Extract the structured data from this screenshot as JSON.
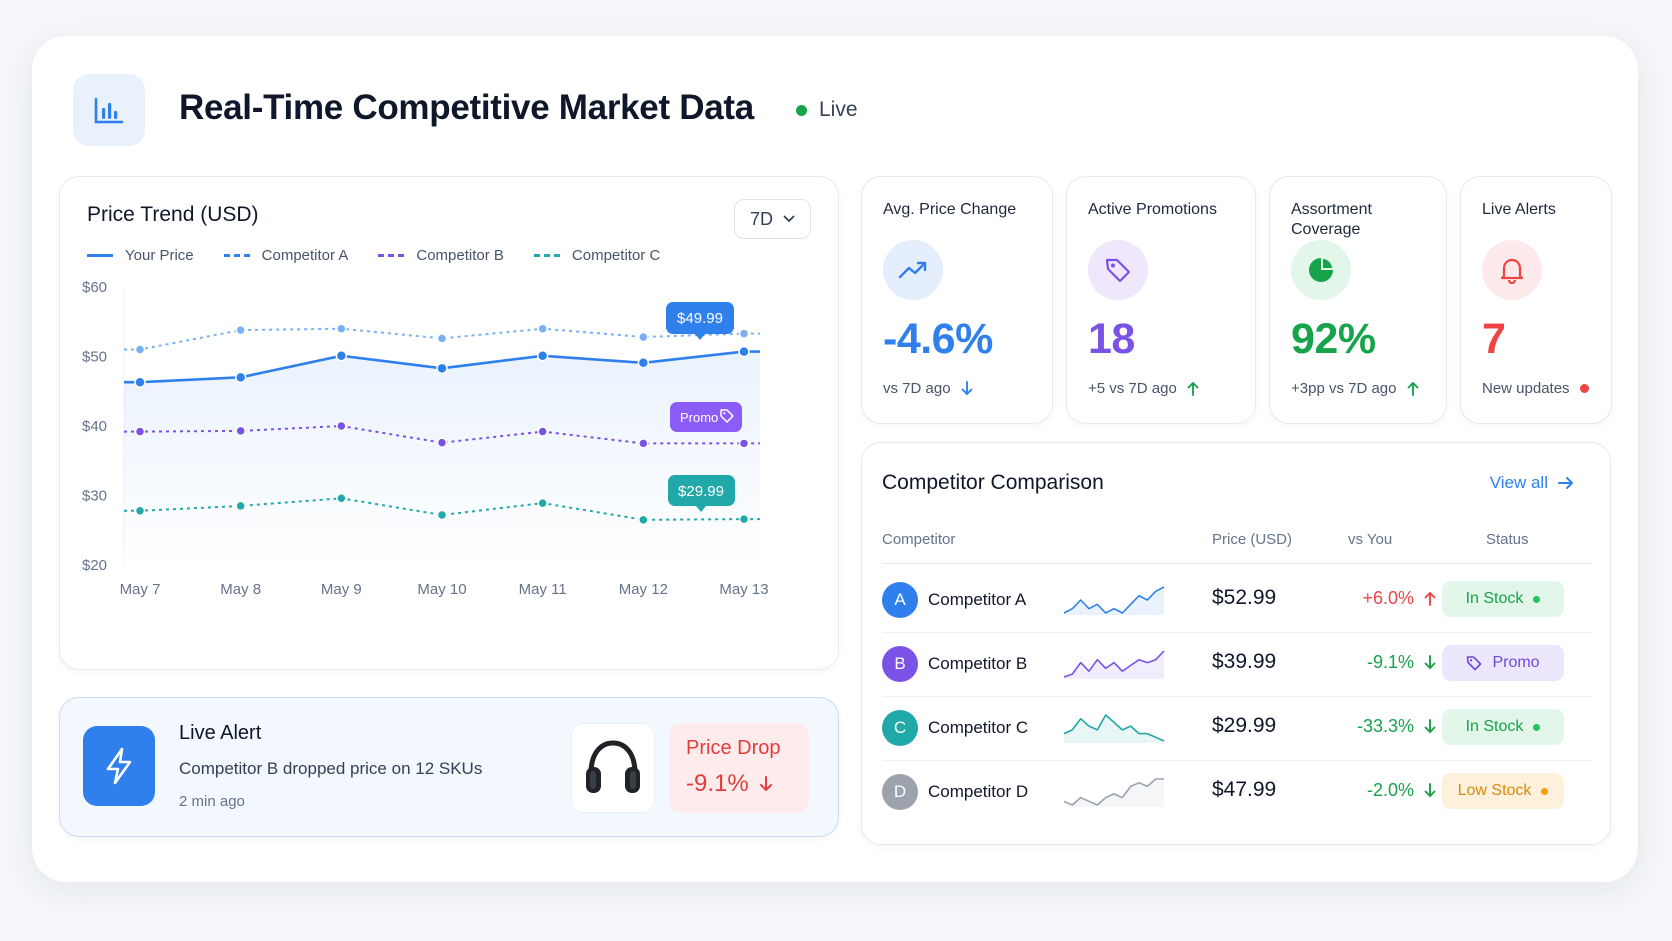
{
  "header": {
    "title": "Real-Time Competitive Market Data",
    "live_label": "Live"
  },
  "trend": {
    "title": "Price Trend (USD)",
    "range": "7D",
    "legend": [
      "Your Price",
      "Competitor A",
      "Competitor B",
      "Competitor C"
    ],
    "callouts": {
      "a": "$49.99",
      "promo": "Promo",
      "c": "$29.99"
    }
  },
  "chart_data": {
    "type": "line",
    "title": "Price Trend (USD)",
    "x": [
      "May 7",
      "May 8",
      "May 9",
      "May 10",
      "May 11",
      "May 12",
      "May 13"
    ],
    "y_ticks": [
      "$60",
      "$50",
      "$40",
      "$30",
      "$20"
    ],
    "ylim": [
      20,
      60
    ],
    "grid": false,
    "legend_position": "top-left",
    "series": [
      {
        "name": "Your Price",
        "values": [
          46.3,
          47.0,
          50.1,
          48.3,
          50.1,
          49.1,
          50.7
        ],
        "color": "#2f80ed",
        "dashed": false,
        "area": true
      },
      {
        "name": "Competitor A",
        "values": [
          51.0,
          53.8,
          54.0,
          52.6,
          54.0,
          52.8,
          53.3
        ],
        "color": "#7ab0f3",
        "dashed": true
      },
      {
        "name": "Competitor B",
        "values": [
          39.2,
          39.3,
          40.0,
          37.6,
          39.2,
          37.5,
          37.5
        ],
        "color": "#7b52e6",
        "dashed": true
      },
      {
        "name": "Competitor C",
        "values": [
          27.8,
          28.5,
          29.6,
          27.2,
          28.9,
          26.5,
          26.6
        ],
        "color": "#21a8a8",
        "dashed": true
      }
    ]
  },
  "alert": {
    "title": "Live Alert",
    "text": "Competitor B dropped price on 12 SKUs",
    "time": "2 min ago",
    "drop_label": "Price Drop",
    "drop_value": "-9.1%"
  },
  "kpis": [
    {
      "label": "Avg. Price Change",
      "value": "-4.6%",
      "foot": "vs 7D ago",
      "color": "#2f80ed",
      "icon": "trending-up-icon"
    },
    {
      "label": "Active Promotions",
      "value": "18",
      "foot": "+5 vs 7D ago",
      "color": "#7b52e6",
      "icon": "tag-icon"
    },
    {
      "label": "Assortment Coverage",
      "value": "92%",
      "foot": "+3pp vs 7D ago",
      "color": "#16a34a",
      "icon": "pie-icon"
    },
    {
      "label": "Live Alerts",
      "value": "7",
      "foot": "New updates",
      "color": "#ef4444",
      "icon": "bell-icon"
    }
  ],
  "comparison": {
    "title": "Competitor Comparison",
    "view_all": "View all",
    "headers": [
      "Competitor",
      "Price (USD)",
      "vs You",
      "Status"
    ],
    "rows": [
      {
        "initial": "A",
        "name": "Competitor A",
        "price": "$52.99",
        "delta": "+6.0%",
        "status": "In Stock",
        "avatar_color": "#2f80ed",
        "spark": [
          4,
          5,
          7,
          5,
          6,
          4,
          5,
          4,
          6,
          8,
          7,
          9,
          10
        ],
        "spark_color": "#2f80ed"
      },
      {
        "initial": "B",
        "name": "Competitor B",
        "price": "$39.99",
        "delta": "-9.1%",
        "status": "Promo",
        "avatar_color": "#7b52e6",
        "spark": [
          3,
          4,
          8,
          5,
          9,
          6,
          8,
          5,
          7,
          9,
          8,
          9,
          12
        ],
        "spark_color": "#7b52e6"
      },
      {
        "initial": "C",
        "name": "Competitor C",
        "price": "$29.99",
        "delta": "-33.3%",
        "status": "In Stock",
        "avatar_color": "#21a8a8",
        "spark": [
          5,
          6,
          9,
          7,
          6,
          10,
          8,
          6,
          7,
          5,
          5,
          4,
          3
        ],
        "spark_color": "#21a8a8"
      },
      {
        "initial": "D",
        "name": "Competitor D",
        "price": "$47.99",
        "delta": "-2.0%",
        "status": "Low Stock",
        "avatar_color": "#9ca3af",
        "spark": [
          4,
          3,
          5,
          4,
          3,
          5,
          6,
          5,
          8,
          9,
          8,
          10,
          10
        ],
        "spark_color": "#9ca3af"
      }
    ]
  }
}
